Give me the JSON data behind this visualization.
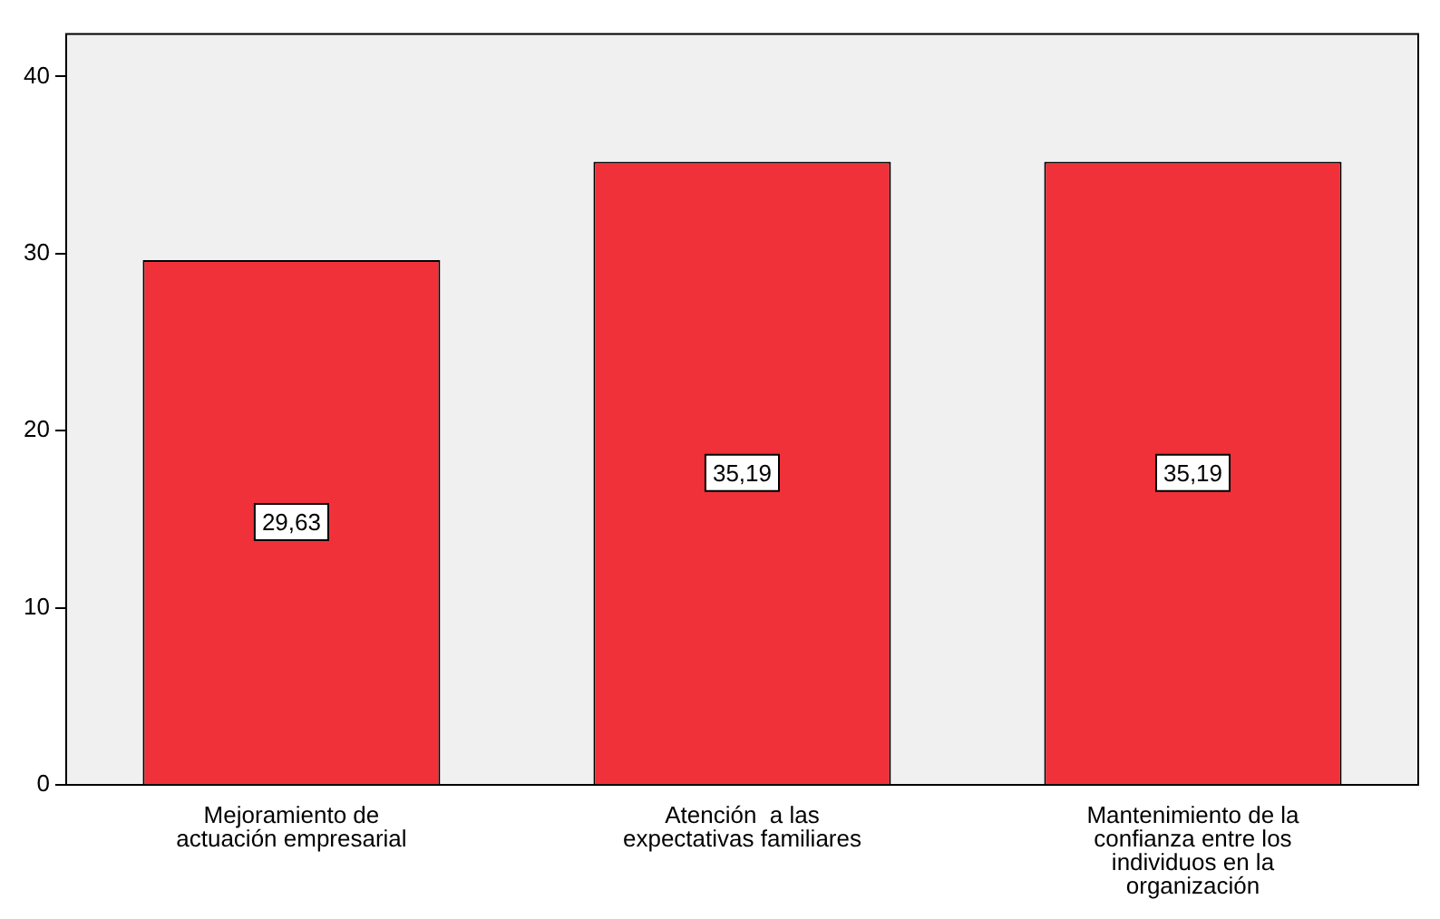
{
  "chart_data": {
    "type": "bar",
    "categories": [
      "Mejoramiento de actuación empresarial",
      "Atención  a las expectativas familiares",
      "Mantenimiento de la confianza entre los individuos en la organización"
    ],
    "values": [
      29.63,
      35.19,
      35.19
    ],
    "color": "#f0313a",
    "value_labels": [
      "29,63",
      "35,19",
      "35,19"
    ],
    "ylim": [
      0,
      42.4
    ],
    "yticks": [
      0,
      10,
      20,
      30,
      40
    ],
    "grid": false,
    "legend": false
  }
}
